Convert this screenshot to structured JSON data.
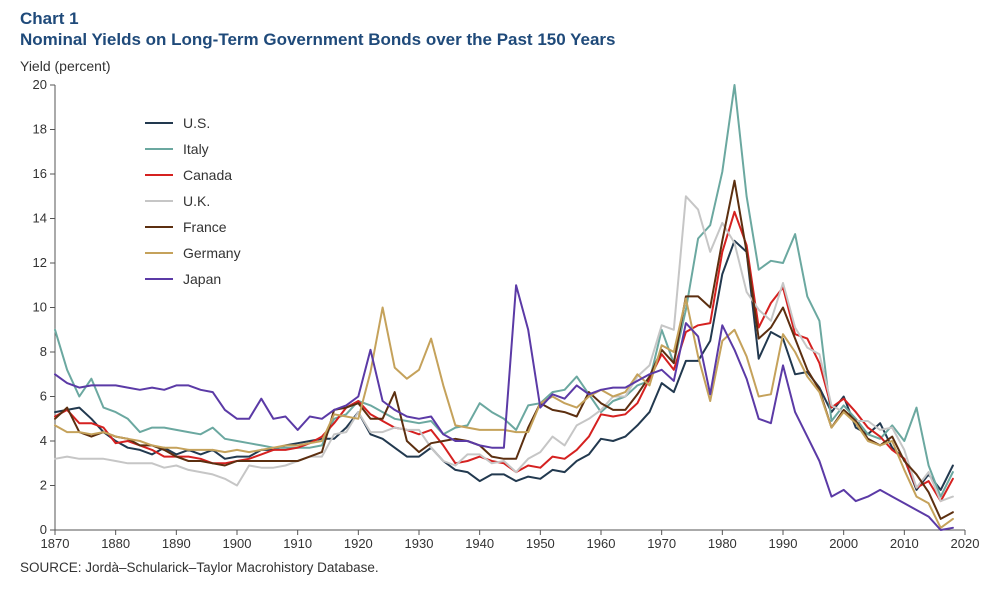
{
  "chart": {
    "type": "line",
    "title": "Chart 1",
    "subtitle": "Nominal Yields on Long-Term Government Bonds over the Past 150 Years",
    "title_color": "#1f4a7a",
    "title_fontsize": 17,
    "y_axis_label": "Yield (percent)",
    "axis_label_fontsize": 14,
    "axis_label_color": "#333333",
    "tick_label_fontsize": 13,
    "tick_label_color": "#333333",
    "background_color": "#ffffff",
    "axis_color": "#555555",
    "tick_color": "#555555",
    "line_width": 2,
    "xlim": [
      1870,
      2020
    ],
    "ylim": [
      0,
      20
    ],
    "xtick_step": 10,
    "ytick_step": 2,
    "xticks": [
      1870,
      1880,
      1890,
      1900,
      1910,
      1920,
      1930,
      1940,
      1950,
      1960,
      1970,
      1980,
      1990,
      2000,
      2010,
      2020
    ],
    "yticks": [
      0,
      2,
      4,
      6,
      8,
      10,
      12,
      14,
      16,
      18,
      20
    ],
    "source": "SOURCE: Jordà–Schularick–Taylor Macrohistory Database.",
    "source_fontsize": 13.5,
    "legend": {
      "position": "upper-left-inside",
      "items": [
        {
          "label": "U.S.",
          "color": "#22394f"
        },
        {
          "label": "Italy",
          "color": "#6ba8a0"
        },
        {
          "label": "Canada",
          "color": "#d52120"
        },
        {
          "label": "U.K.",
          "color": "#c6c6c6"
        },
        {
          "label": "France",
          "color": "#5c2f10"
        },
        {
          "label": "Germany",
          "color": "#c5a25b"
        },
        {
          "label": "Japan",
          "color": "#5b3aa6"
        }
      ]
    },
    "x_values": [
      1870,
      1872,
      1874,
      1876,
      1878,
      1880,
      1882,
      1884,
      1886,
      1888,
      1890,
      1892,
      1894,
      1896,
      1898,
      1900,
      1902,
      1904,
      1906,
      1908,
      1910,
      1912,
      1914,
      1916,
      1918,
      1920,
      1922,
      1924,
      1926,
      1928,
      1930,
      1932,
      1934,
      1936,
      1938,
      1940,
      1942,
      1944,
      1946,
      1948,
      1950,
      1952,
      1954,
      1956,
      1958,
      1960,
      1962,
      1964,
      1966,
      1968,
      1970,
      1972,
      1974,
      1976,
      1978,
      1980,
      1982,
      1984,
      1986,
      1988,
      1990,
      1992,
      1994,
      1996,
      1998,
      2000,
      2002,
      2004,
      2006,
      2008,
      2010,
      2012,
      2014,
      2016,
      2018
    ],
    "series": [
      {
        "name": "U.S.",
        "color": "#22394f",
        "values": [
          5.3,
          5.4,
          5.5,
          5.0,
          4.4,
          4.0,
          3.7,
          3.6,
          3.4,
          3.7,
          3.4,
          3.6,
          3.4,
          3.6,
          3.2,
          3.3,
          3.3,
          3.6,
          3.6,
          3.8,
          3.9,
          4.0,
          4.1,
          4.1,
          4.6,
          5.3,
          4.3,
          4.1,
          3.7,
          3.3,
          3.3,
          3.7,
          3.1,
          2.7,
          2.6,
          2.2,
          2.5,
          2.5,
          2.2,
          2.4,
          2.3,
          2.7,
          2.6,
          3.1,
          3.4,
          4.1,
          4.0,
          4.2,
          4.7,
          5.3,
          6.6,
          6.2,
          7.6,
          7.6,
          8.5,
          11.5,
          13.0,
          12.5,
          7.7,
          8.9,
          8.6,
          7.0,
          7.1,
          6.4,
          5.3,
          6.0,
          4.6,
          4.3,
          4.8,
          3.7,
          3.2,
          1.8,
          2.5,
          1.8,
          2.9
        ]
      },
      {
        "name": "Italy",
        "color": "#6ba8a0",
        "values": [
          9.0,
          7.2,
          6.0,
          6.8,
          5.5,
          5.3,
          5.0,
          4.4,
          4.6,
          4.6,
          4.5,
          4.4,
          4.3,
          4.6,
          4.1,
          4.0,
          3.9,
          3.8,
          3.7,
          3.7,
          3.7,
          3.7,
          3.8,
          5.0,
          5.2,
          5.8,
          5.6,
          5.3,
          5.0,
          4.9,
          4.8,
          4.9,
          4.3,
          4.6,
          4.7,
          5.7,
          5.3,
          5.0,
          4.5,
          5.6,
          5.7,
          6.2,
          6.3,
          6.9,
          6.1,
          5.3,
          5.8,
          6.0,
          6.5,
          6.7,
          9.0,
          7.5,
          9.9,
          13.1,
          13.7,
          16.1,
          20.0,
          15.0,
          11.7,
          12.1,
          12.0,
          13.3,
          10.5,
          9.4,
          4.9,
          5.6,
          5.0,
          4.3,
          4.1,
          4.7,
          4.0,
          5.5,
          2.9,
          1.5,
          2.6
        ]
      },
      {
        "name": "Canada",
        "color": "#d52120",
        "values": [
          5.1,
          5.4,
          4.8,
          4.8,
          4.6,
          3.9,
          4.0,
          3.8,
          3.6,
          3.3,
          3.3,
          3.3,
          3.2,
          3.0,
          3.0,
          3.1,
          3.2,
          3.4,
          3.6,
          3.6,
          3.7,
          3.9,
          4.2,
          4.8,
          5.5,
          5.8,
          5.2,
          4.9,
          4.6,
          4.5,
          4.3,
          4.5,
          3.8,
          3.0,
          3.1,
          3.3,
          3.1,
          3.0,
          2.6,
          2.9,
          2.8,
          3.3,
          3.2,
          3.6,
          4.2,
          5.2,
          5.1,
          5.2,
          5.7,
          6.8,
          7.9,
          7.2,
          8.9,
          9.2,
          9.3,
          12.5,
          14.3,
          12.8,
          9.1,
          10.2,
          10.9,
          8.8,
          8.6,
          7.5,
          5.5,
          5.9,
          5.3,
          4.6,
          4.2,
          3.6,
          3.2,
          1.9,
          2.2,
          1.3,
          2.3
        ]
      },
      {
        "name": "U.K.",
        "color": "#c6c6c6",
        "values": [
          3.2,
          3.3,
          3.2,
          3.2,
          3.2,
          3.1,
          3.0,
          3.0,
          3.0,
          2.8,
          2.9,
          2.7,
          2.6,
          2.5,
          2.3,
          2.0,
          2.9,
          2.8,
          2.8,
          2.9,
          3.1,
          3.3,
          3.3,
          4.3,
          4.4,
          5.3,
          4.4,
          4.4,
          4.6,
          4.5,
          4.5,
          3.7,
          3.1,
          2.9,
          3.4,
          3.4,
          3.0,
          3.1,
          2.6,
          3.2,
          3.5,
          4.2,
          3.8,
          4.7,
          5.0,
          5.4,
          6.0,
          6.0,
          6.9,
          7.4,
          9.2,
          9.0,
          15.0,
          14.4,
          12.5,
          13.8,
          12.9,
          10.7,
          9.9,
          9.4,
          11.1,
          9.1,
          8.2,
          7.9,
          5.6,
          5.3,
          4.9,
          4.9,
          4.5,
          4.6,
          3.6,
          1.9,
          2.6,
          1.3,
          1.5
        ]
      },
      {
        "name": "France",
        "color": "#5c2f10",
        "values": [
          5.0,
          5.5,
          4.4,
          4.2,
          4.4,
          4.2,
          4.1,
          3.8,
          3.8,
          3.6,
          3.3,
          3.1,
          3.1,
          3.0,
          2.9,
          3.1,
          3.1,
          3.1,
          3.1,
          3.1,
          3.1,
          3.3,
          3.5,
          5.4,
          5.5,
          5.7,
          5.0,
          5.0,
          6.2,
          4.0,
          3.5,
          3.9,
          4.0,
          4.1,
          4.0,
          3.8,
          3.3,
          3.2,
          3.2,
          4.6,
          5.7,
          5.4,
          5.3,
          5.1,
          6.2,
          5.7,
          5.4,
          5.4,
          6.1,
          6.9,
          8.1,
          7.5,
          10.5,
          10.5,
          10.0,
          13.0,
          15.7,
          12.5,
          8.6,
          9.1,
          10.0,
          8.6,
          7.2,
          6.3,
          4.6,
          5.4,
          4.9,
          4.1,
          3.8,
          4.2,
          3.1,
          2.5,
          1.7,
          0.5,
          0.8
        ]
      },
      {
        "name": "Germany",
        "color": "#c5a25b",
        "values": [
          4.7,
          4.4,
          4.4,
          4.3,
          4.4,
          4.2,
          4.1,
          4.0,
          3.8,
          3.7,
          3.7,
          3.6,
          3.6,
          3.6,
          3.5,
          3.6,
          3.5,
          3.6,
          3.7,
          3.8,
          3.8,
          3.9,
          4.0,
          5.2,
          5.1,
          5.0,
          7.1,
          10.0,
          7.3,
          6.8,
          7.2,
          8.6,
          6.5,
          4.7,
          4.6,
          4.5,
          4.5,
          4.5,
          4.4,
          4.4,
          5.7,
          6.0,
          5.7,
          5.5,
          6.0,
          6.3,
          6.0,
          6.2,
          7.0,
          6.5,
          8.3,
          8.0,
          10.4,
          7.8,
          5.8,
          8.5,
          9.0,
          7.8,
          6.0,
          6.1,
          8.8,
          8.0,
          6.9,
          6.2,
          4.6,
          5.3,
          4.8,
          4.0,
          3.8,
          4.0,
          2.7,
          1.5,
          1.2,
          0.1,
          0.5
        ]
      },
      {
        "name": "Japan",
        "color": "#5b3aa6",
        "values": [
          7.0,
          6.6,
          6.4,
          6.5,
          6.5,
          6.5,
          6.4,
          6.3,
          6.4,
          6.3,
          6.5,
          6.5,
          6.3,
          6.2,
          5.4,
          5.0,
          5.0,
          5.9,
          5.0,
          5.1,
          4.5,
          5.1,
          5.0,
          5.4,
          5.6,
          6.0,
          8.1,
          5.8,
          5.4,
          5.1,
          5.0,
          5.1,
          4.3,
          4.0,
          4.0,
          3.8,
          3.7,
          3.7,
          11.0,
          9.0,
          5.5,
          6.1,
          5.9,
          6.5,
          6.1,
          6.3,
          6.4,
          6.4,
          6.7,
          7.0,
          7.2,
          6.7,
          9.3,
          8.7,
          6.1,
          9.2,
          8.1,
          6.8,
          5.0,
          4.8,
          7.4,
          5.3,
          4.2,
          3.1,
          1.5,
          1.8,
          1.3,
          1.5,
          1.8,
          1.5,
          1.2,
          0.9,
          0.6,
          0.0,
          0.1
        ]
      }
    ]
  }
}
